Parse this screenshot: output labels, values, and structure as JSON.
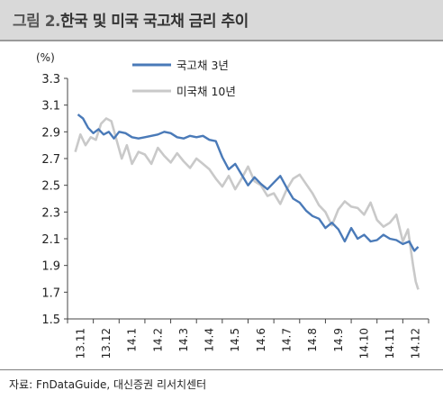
{
  "header": {
    "title_prefix": "그림 2.",
    "title_main": "한국 및 미국 국고채 금리 추이"
  },
  "footer": {
    "source": "자료: FnDataGuide, 대신증권 리서치센터"
  },
  "colors": {
    "title_bar": "#d9d9d9",
    "series_kr": "#4a7ab8",
    "series_us": "#c9c9c9"
  },
  "chart_data": {
    "type": "line",
    "unit_label": "(%)",
    "ylim": [
      1.5,
      3.3
    ],
    "yticks": [
      "3.3",
      "3.1",
      "2.9",
      "2.7",
      "2.5",
      "2.3",
      "2.1",
      "1.9",
      "1.7",
      "1.5"
    ],
    "xticks": [
      "13.11",
      "13.12",
      "14.1",
      "14.2",
      "14.3",
      "14.4",
      "14.5",
      "14.6",
      "14.7",
      "14.8",
      "14.9",
      "14.10",
      "14.11",
      "14.12"
    ],
    "x_start": "13.11",
    "grid": false,
    "legend_position": "top-left",
    "series": [
      {
        "name": "국고채 3년",
        "color": "#4a7ab8",
        "x": [
          0.4,
          0.6,
          0.8,
          1.0,
          1.2,
          1.4,
          1.6,
          1.8,
          2.0,
          2.25,
          2.5,
          2.75,
          3.0,
          3.25,
          3.5,
          3.75,
          4.0,
          4.25,
          4.5,
          4.75,
          5.0,
          5.25,
          5.5,
          5.75,
          6.0,
          6.25,
          6.5,
          6.75,
          7.0,
          7.25,
          7.5,
          7.75,
          8.0,
          8.25,
          8.5,
          8.75,
          9.0,
          9.25,
          9.5,
          9.75,
          10.0,
          10.25,
          10.5,
          10.75,
          11.0,
          11.25,
          11.5,
          11.75,
          12.0,
          12.25,
          12.5,
          12.75,
          13.0,
          13.25,
          13.45,
          13.6
        ],
        "values": [
          3.03,
          3.0,
          2.93,
          2.89,
          2.92,
          2.88,
          2.9,
          2.85,
          2.9,
          2.89,
          2.86,
          2.85,
          2.86,
          2.87,
          2.88,
          2.9,
          2.89,
          2.86,
          2.85,
          2.87,
          2.86,
          2.87,
          2.84,
          2.83,
          2.71,
          2.62,
          2.66,
          2.58,
          2.5,
          2.56,
          2.51,
          2.47,
          2.52,
          2.57,
          2.48,
          2.4,
          2.37,
          2.31,
          2.27,
          2.25,
          2.18,
          2.22,
          2.17,
          2.08,
          2.18,
          2.1,
          2.13,
          2.08,
          2.09,
          2.13,
          2.1,
          2.09,
          2.06,
          2.08,
          2.01,
          2.04
        ]
      },
      {
        "name": "미국채 10년",
        "color": "#c9c9c9",
        "x": [
          0.3,
          0.5,
          0.7,
          0.9,
          1.1,
          1.3,
          1.5,
          1.7,
          1.9,
          2.1,
          2.3,
          2.5,
          2.75,
          3.0,
          3.25,
          3.5,
          3.75,
          4.0,
          4.25,
          4.5,
          4.75,
          5.0,
          5.25,
          5.5,
          5.75,
          6.0,
          6.25,
          6.5,
          6.75,
          7.0,
          7.25,
          7.5,
          7.75,
          8.0,
          8.25,
          8.5,
          8.75,
          9.0,
          9.25,
          9.5,
          9.75,
          10.0,
          10.25,
          10.5,
          10.75,
          11.0,
          11.25,
          11.5,
          11.75,
          12.0,
          12.25,
          12.5,
          12.75,
          13.0,
          13.2,
          13.4,
          13.5,
          13.6
        ],
        "values": [
          2.75,
          2.88,
          2.8,
          2.86,
          2.84,
          2.96,
          3.0,
          2.98,
          2.84,
          2.7,
          2.8,
          2.66,
          2.75,
          2.73,
          2.66,
          2.78,
          2.72,
          2.67,
          2.74,
          2.68,
          2.63,
          2.7,
          2.66,
          2.62,
          2.55,
          2.49,
          2.57,
          2.47,
          2.55,
          2.64,
          2.53,
          2.5,
          2.42,
          2.44,
          2.36,
          2.47,
          2.55,
          2.58,
          2.51,
          2.44,
          2.35,
          2.3,
          2.2,
          2.32,
          2.38,
          2.34,
          2.33,
          2.28,
          2.37,
          2.24,
          2.19,
          2.22,
          2.28,
          2.08,
          2.17,
          1.9,
          1.78,
          1.72
        ]
      }
    ]
  }
}
